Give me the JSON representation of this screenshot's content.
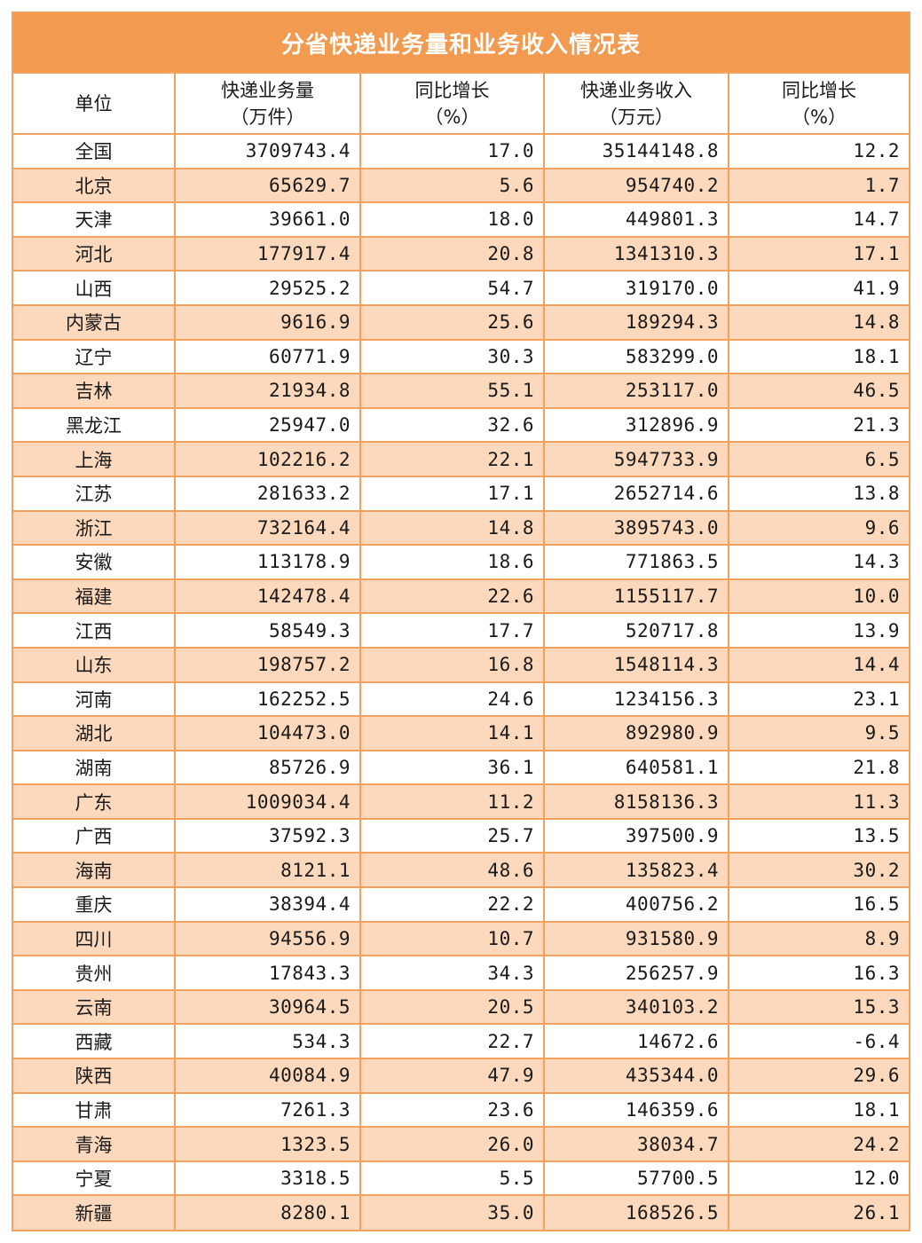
{
  "title": "分省快递业务量和业务收入情况表",
  "headers": [
    {
      "line1": "单位",
      "line2": ""
    },
    {
      "line1": "快递业务量",
      "line2": "（万件）"
    },
    {
      "line1": "同比增长",
      "line2": "（%）"
    },
    {
      "line1": "快递业务收入",
      "line2": "（万元）"
    },
    {
      "line1": "同比增长",
      "line2": "（%）"
    }
  ],
  "rows": [
    {
      "name": "全国",
      "volume": "3709743.4",
      "volume_growth": "17.0",
      "revenue": "35144148.8",
      "revenue_growth": "12.2"
    },
    {
      "name": "北京",
      "volume": "65629.7",
      "volume_growth": "5.6",
      "revenue": "954740.2",
      "revenue_growth": "1.7"
    },
    {
      "name": "天津",
      "volume": "39661.0",
      "volume_growth": "18.0",
      "revenue": "449801.3",
      "revenue_growth": "14.7"
    },
    {
      "name": "河北",
      "volume": "177917.4",
      "volume_growth": "20.8",
      "revenue": "1341310.3",
      "revenue_growth": "17.1"
    },
    {
      "name": "山西",
      "volume": "29525.2",
      "volume_growth": "54.7",
      "revenue": "319170.0",
      "revenue_growth": "41.9"
    },
    {
      "name": "内蒙古",
      "volume": "9616.9",
      "volume_growth": "25.6",
      "revenue": "189294.3",
      "revenue_growth": "14.8"
    },
    {
      "name": "辽宁",
      "volume": "60771.9",
      "volume_growth": "30.3",
      "revenue": "583299.0",
      "revenue_growth": "18.1"
    },
    {
      "name": "吉林",
      "volume": "21934.8",
      "volume_growth": "55.1",
      "revenue": "253117.0",
      "revenue_growth": "46.5"
    },
    {
      "name": "黑龙江",
      "volume": "25947.0",
      "volume_growth": "32.6",
      "revenue": "312896.9",
      "revenue_growth": "21.3"
    },
    {
      "name": "上海",
      "volume": "102216.2",
      "volume_growth": "22.1",
      "revenue": "5947733.9",
      "revenue_growth": "6.5"
    },
    {
      "name": "江苏",
      "volume": "281633.2",
      "volume_growth": "17.1",
      "revenue": "2652714.6",
      "revenue_growth": "13.8"
    },
    {
      "name": "浙江",
      "volume": "732164.4",
      "volume_growth": "14.8",
      "revenue": "3895743.0",
      "revenue_growth": "9.6"
    },
    {
      "name": "安徽",
      "volume": "113178.9",
      "volume_growth": "18.6",
      "revenue": "771863.5",
      "revenue_growth": "14.3"
    },
    {
      "name": "福建",
      "volume": "142478.4",
      "volume_growth": "22.6",
      "revenue": "1155117.7",
      "revenue_growth": "10.0"
    },
    {
      "name": "江西",
      "volume": "58549.3",
      "volume_growth": "17.7",
      "revenue": "520717.8",
      "revenue_growth": "13.9"
    },
    {
      "name": "山东",
      "volume": "198757.2",
      "volume_growth": "16.8",
      "revenue": "1548114.3",
      "revenue_growth": "14.4"
    },
    {
      "name": "河南",
      "volume": "162252.5",
      "volume_growth": "24.6",
      "revenue": "1234156.3",
      "revenue_growth": "23.1"
    },
    {
      "name": "湖北",
      "volume": "104473.0",
      "volume_growth": "14.1",
      "revenue": "892980.9",
      "revenue_growth": "9.5"
    },
    {
      "name": "湖南",
      "volume": "85726.9",
      "volume_growth": "36.1",
      "revenue": "640581.1",
      "revenue_growth": "21.8"
    },
    {
      "name": "广东",
      "volume": "1009034.4",
      "volume_growth": "11.2",
      "revenue": "8158136.3",
      "revenue_growth": "11.3"
    },
    {
      "name": "广西",
      "volume": "37592.3",
      "volume_growth": "25.7",
      "revenue": "397500.9",
      "revenue_growth": "13.5"
    },
    {
      "name": "海南",
      "volume": "8121.1",
      "volume_growth": "48.6",
      "revenue": "135823.4",
      "revenue_growth": "30.2"
    },
    {
      "name": "重庆",
      "volume": "38394.4",
      "volume_growth": "22.2",
      "revenue": "400756.2",
      "revenue_growth": "16.5"
    },
    {
      "name": "四川",
      "volume": "94556.9",
      "volume_growth": "10.7",
      "revenue": "931580.9",
      "revenue_growth": "8.9"
    },
    {
      "name": "贵州",
      "volume": "17843.3",
      "volume_growth": "34.3",
      "revenue": "256257.9",
      "revenue_growth": "16.3"
    },
    {
      "name": "云南",
      "volume": "30964.5",
      "volume_growth": "20.5",
      "revenue": "340103.2",
      "revenue_growth": "15.3"
    },
    {
      "name": "西藏",
      "volume": "534.3",
      "volume_growth": "22.7",
      "revenue": "14672.6",
      "revenue_growth": "-6.4"
    },
    {
      "name": "陕西",
      "volume": "40084.9",
      "volume_growth": "47.9",
      "revenue": "435344.0",
      "revenue_growth": "29.6"
    },
    {
      "name": "甘肃",
      "volume": "7261.3",
      "volume_growth": "23.6",
      "revenue": "146359.6",
      "revenue_growth": "18.1"
    },
    {
      "name": "青海",
      "volume": "1323.5",
      "volume_growth": "26.0",
      "revenue": "38034.7",
      "revenue_growth": "24.2"
    },
    {
      "name": "宁夏",
      "volume": "3318.5",
      "volume_growth": "5.5",
      "revenue": "57700.5",
      "revenue_growth": "12.0"
    },
    {
      "name": "新疆",
      "volume": "8280.1",
      "volume_growth": "35.0",
      "revenue": "168526.5",
      "revenue_growth": "26.1"
    }
  ]
}
